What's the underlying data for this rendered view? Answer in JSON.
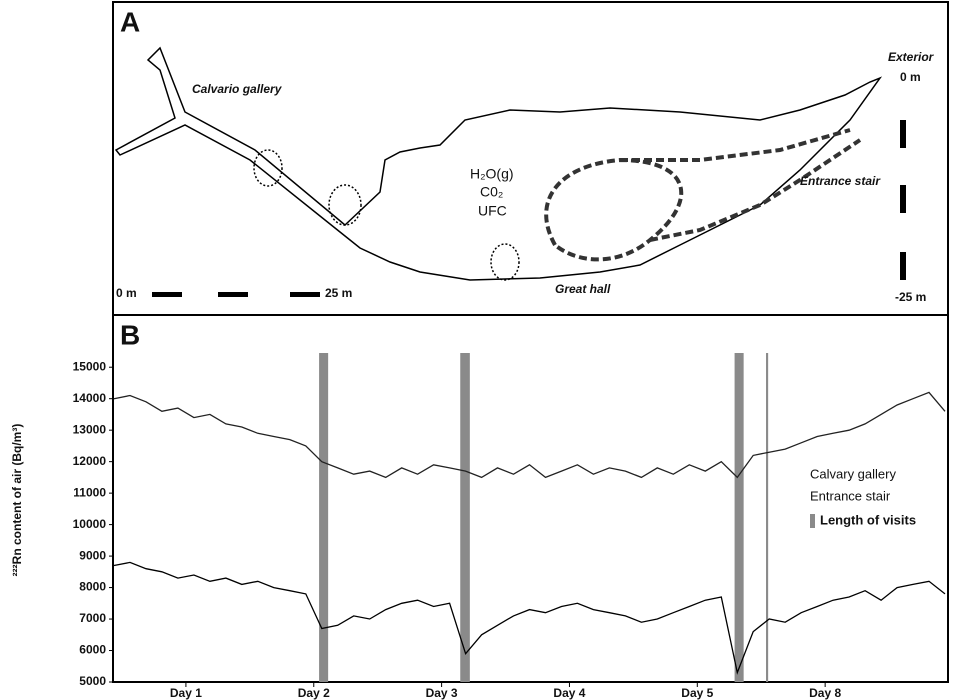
{
  "panel_a": {
    "label": "A",
    "calvario": "Calvario gallery",
    "exterior": "Exterior",
    "exterior_top": "0 m",
    "exterior_bottom": "-25 m",
    "entrance": "Entrance stair",
    "gas1": "H₂O(g)",
    "gas2": "C0₂",
    "gas3": "UFC",
    "great_hall": "Great hall",
    "scale_start": "0 m",
    "scale_end": "25 m"
  },
  "chart_data": {
    "type": "line",
    "panel_label": "B",
    "ylabel": "²²²Rn content of air (Bq/m³)",
    "x": [
      0,
      3,
      6,
      9,
      12,
      15,
      18,
      21,
      24,
      27,
      30,
      33,
      36,
      39,
      42,
      45,
      48,
      51,
      54,
      57,
      60,
      63,
      66,
      69,
      72,
      75,
      78,
      81,
      84,
      87,
      90,
      93,
      96,
      99,
      102,
      105,
      108,
      111,
      114,
      117,
      120,
      123,
      126,
      129,
      132,
      135,
      138,
      141,
      144,
      147,
      150,
      153,
      156
    ],
    "xlim": [
      0,
      156
    ],
    "xticks": [
      {
        "value": 13.5,
        "label": "Day 1"
      },
      {
        "value": 37.5,
        "label": "Day 2"
      },
      {
        "value": 61.5,
        "label": "Day 3"
      },
      {
        "value": 85.5,
        "label": "Day 4"
      },
      {
        "value": 109.5,
        "label": "Day 5"
      },
      {
        "value": 133.5,
        "label": "Day 8"
      }
    ],
    "ylim": [
      5000,
      16500
    ],
    "yticks": [
      5000,
      6000,
      7000,
      8000,
      9000,
      10000,
      11000,
      12000,
      13000,
      14000,
      15000
    ],
    "series": [
      {
        "name": "Calvary gallery",
        "color": "#222",
        "values": [
          14000,
          14100,
          13900,
          13600,
          13700,
          13400,
          13500,
          13200,
          13100,
          12900,
          12800,
          12700,
          12500,
          12000,
          11800,
          11600,
          11700,
          11500,
          11800,
          11600,
          11900,
          11800,
          11700,
          11500,
          11800,
          11600,
          11900,
          11500,
          11700,
          11900,
          11600,
          11800,
          11700,
          11500,
          11800,
          11600,
          11900,
          11700,
          12000,
          11500,
          12200,
          12300,
          12400,
          12600,
          12800,
          12900,
          13000,
          13200,
          13500,
          13800,
          14000,
          14200,
          13600
        ]
      },
      {
        "name": "Entrance stair",
        "color": "#000",
        "values": [
          8700,
          8800,
          8600,
          8500,
          8300,
          8400,
          8200,
          8300,
          8100,
          8200,
          8000,
          7900,
          7800,
          6700,
          6800,
          7100,
          7000,
          7300,
          7500,
          7600,
          7400,
          7500,
          5900,
          6500,
          6800,
          7100,
          7300,
          7200,
          7400,
          7500,
          7300,
          7200,
          7100,
          6900,
          7000,
          7200,
          7400,
          7600,
          7700,
          5300,
          6600,
          7000,
          6900,
          7200,
          7400,
          7600,
          7700,
          7900,
          7600,
          8000,
          8100,
          8200,
          7800
        ]
      }
    ],
    "visits": {
      "name": "Length of visits",
      "color": "#8a8a8a",
      "ranges": [
        [
          38.5,
          40.2
        ],
        [
          65,
          66.8
        ],
        [
          116.5,
          118.2
        ],
        [
          122.4,
          122.8
        ]
      ]
    }
  }
}
